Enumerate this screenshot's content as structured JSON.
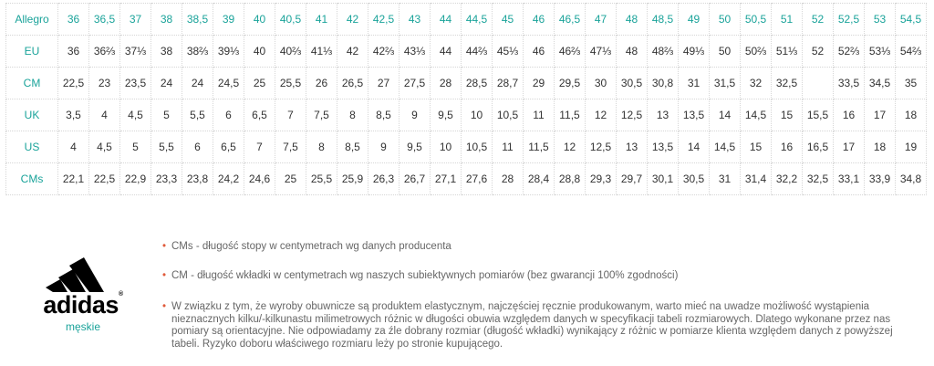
{
  "table": {
    "rows": [
      [
        "Allegro",
        "36",
        "36,5",
        "37",
        "38",
        "38,5",
        "39",
        "40",
        "40,5",
        "41",
        "42",
        "42,5",
        "43",
        "44",
        "44,5",
        "45",
        "46",
        "46,5",
        "47",
        "48",
        "48,5",
        "49",
        "50",
        "50,5",
        "51",
        "52",
        "52,5",
        "53",
        "54,5"
      ],
      [
        "EU",
        "36",
        "36⅔",
        "37⅓",
        "38",
        "38⅔",
        "39⅓",
        "40",
        "40⅔",
        "41⅓",
        "42",
        "42⅔",
        "43⅓",
        "44",
        "44⅔",
        "45⅓",
        "46",
        "46⅔",
        "47⅓",
        "48",
        "48⅔",
        "49⅓",
        "50",
        "50⅔",
        "51⅓",
        "52",
        "52⅔",
        "53⅓",
        "54⅔"
      ],
      [
        "CM",
        "22,5",
        "23",
        "23,5",
        "24",
        "24",
        "24,5",
        "25",
        "25,5",
        "26",
        "26,5",
        "27",
        "27,5",
        "28",
        "28,5",
        "28,7",
        "29",
        "29,5",
        "30",
        "30,5",
        "30,8",
        "31",
        "31,5",
        "32",
        "32,5",
        null,
        "33,5",
        "34,5",
        "35"
      ],
      [
        "UK",
        "3,5",
        "4",
        "4,5",
        "5",
        "5,5",
        "6",
        "6,5",
        "7",
        "7,5",
        "8",
        "8,5",
        "9",
        "9,5",
        "10",
        "10,5",
        "11",
        "11,5",
        "12",
        "12,5",
        "13",
        "13,5",
        "14",
        "14,5",
        "15",
        "15,5",
        "16",
        "17",
        "18"
      ],
      [
        "US",
        "4",
        "4,5",
        "5",
        "5,5",
        "6",
        "6,5",
        "7",
        "7,5",
        "8",
        "8,5",
        "9",
        "9,5",
        "10",
        "10,5",
        "11",
        "11,5",
        "12",
        "12,5",
        "13",
        "13,5",
        "14",
        "14,5",
        "15",
        "16",
        "16,5",
        "17",
        "18",
        "19"
      ],
      [
        "CMs",
        "22,1",
        "22,5",
        "22,9",
        "23,3",
        "23,8",
        "24,2",
        "24,6",
        "25",
        "25,5",
        "25,9",
        "26,3",
        "26,7",
        "27,1",
        "27,6",
        "28",
        "28,4",
        "28,8",
        "29,3",
        "29,7",
        "30,1",
        "30,5",
        "31",
        "31,4",
        "32,2",
        "32,5",
        "33,1",
        "33,9",
        "34,8"
      ]
    ]
  },
  "logo": {
    "brand": "adidas",
    "mark": "®",
    "subtitle": "męskie"
  },
  "notes": [
    "CMs - długość stopy w centymetrach wg danych producenta",
    "CM - długość wkładki w centymetrach wg naszych subiektywnych pomiarów (bez gwarancji 100% zgodności)",
    "W związku z tym, że wyroby obuwnicze są produktem elastycznym, najczęściej ręcznie produkowanym, warto mieć na uwadze możliwość wystąpienia nieznacznych kilku/-kilkunastu milimetrowych różnic w długości obuwia względem danych w specyfikacji tabeli rozmiarowych. Dlatego wykonane przez nas pomiary są orientacyjne. Nie odpowiadamy za źle dobrany rozmiar (długość wkładki) wynikający z różnic w pomiarze klienta względem danych z powyższej tabeli. Ryzyko doboru właściwego rozmiaru leży po stronie kupującego."
  ]
}
